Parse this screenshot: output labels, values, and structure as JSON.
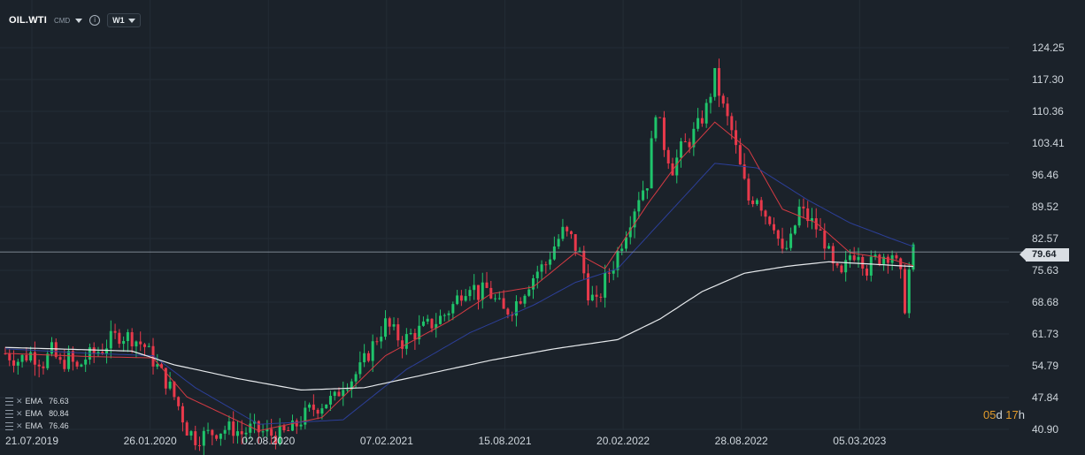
{
  "toolbar": {
    "symbol": "OIL.WTI",
    "market": "CMD",
    "timeframe": "W1"
  },
  "indicators": [
    {
      "label": "EMA",
      "value": "76.63",
      "color": "#d43a43"
    },
    {
      "label": "EMA",
      "value": "80.84",
      "color": "#2c3f98"
    },
    {
      "label": "EMA",
      "value": "76.46",
      "color": "#e6e9ec"
    }
  ],
  "countdown": {
    "days": "05",
    "d_unit": "d",
    "hours": "17",
    "h_unit": "h"
  },
  "current_price": "79.64",
  "colors": {
    "up": "#1fc46b",
    "down": "#e8394b",
    "background": "#1b222a",
    "grid": "#232c35"
  },
  "chart_data": {
    "type": "candlestick",
    "y_ticks": [
      "124.25",
      "117.30",
      "110.36",
      "103.41",
      "96.46",
      "89.52",
      "82.57",
      "75.63",
      "68.68",
      "61.73",
      "54.79",
      "47.84",
      "40.90"
    ],
    "ylim": [
      40.9,
      126.5
    ],
    "x_ticks": [
      "21.07.2019",
      "26.01.2020",
      "02.08.2020",
      "07.02.2021",
      "15.08.2021",
      "20.02.2022",
      "28.08.2022",
      "05.03.2023"
    ],
    "series": [
      {
        "kind": "close",
        "interval": "weekly",
        "points": [
          [
            0,
            57.5
          ],
          [
            3,
            56.0
          ],
          [
            6,
            57.5
          ],
          [
            9,
            55.5
          ],
          [
            11,
            58.0
          ],
          [
            13,
            55.0
          ],
          [
            15,
            56.5
          ],
          [
            17,
            54.0
          ],
          [
            19,
            56.5
          ],
          [
            21,
            57.5
          ],
          [
            23,
            58.5
          ],
          [
            25,
            60.5
          ],
          [
            27,
            61.5
          ],
          [
            30,
            61.0
          ],
          [
            33,
            59.0
          ],
          [
            35,
            56.0
          ],
          [
            37,
            53.0
          ],
          [
            39,
            50.0
          ],
          [
            41,
            46.0
          ],
          [
            43,
            41.0
          ],
          [
            45,
            39.0
          ],
          [
            50,
            40.5
          ],
          [
            52,
            41.0
          ],
          [
            54,
            41.0
          ],
          [
            56,
            40.0
          ],
          [
            58,
            41.0
          ],
          [
            60,
            40.5
          ],
          [
            62,
            40.0
          ],
          [
            64,
            39.5
          ],
          [
            66,
            40.0
          ],
          [
            68,
            41.0
          ],
          [
            70,
            43.0
          ],
          [
            72,
            45.0
          ],
          [
            74,
            46.0
          ],
          [
            76,
            47.0
          ],
          [
            78,
            47.5
          ],
          [
            80,
            51.0
          ],
          [
            82,
            52.0
          ],
          [
            84,
            54.0
          ],
          [
            86,
            57.5
          ],
          [
            88,
            61.0
          ],
          [
            90,
            64.0
          ],
          [
            92,
            62.0
          ],
          [
            94,
            60.0
          ],
          [
            96,
            61.5
          ],
          [
            98,
            62.5
          ],
          [
            100,
            63.5
          ],
          [
            102,
            64.5
          ],
          [
            104,
            66.0
          ],
          [
            106,
            68.0
          ],
          [
            108,
            71.0
          ],
          [
            110,
            73.0
          ],
          [
            112,
            70.5
          ],
          [
            114,
            71.5
          ],
          [
            116,
            69.0
          ],
          [
            118,
            66.5
          ],
          [
            120,
            67.5
          ],
          [
            122,
            70.0
          ],
          [
            124,
            73.0
          ],
          [
            126,
            75.5
          ],
          [
            128,
            77.0
          ],
          [
            130,
            81.0
          ],
          [
            132,
            84.0
          ],
          [
            134,
            82.5
          ],
          [
            136,
            79.0
          ],
          [
            138,
            71.0
          ],
          [
            140,
            68.0
          ],
          [
            142,
            73.5
          ],
          [
            144,
            77.0
          ],
          [
            146,
            82.0
          ],
          [
            148,
            87.0
          ],
          [
            150,
            92.0
          ],
          [
            152,
            95.0
          ],
          [
            154,
            111.0
          ],
          [
            156,
            103.0
          ],
          [
            158,
            98.0
          ],
          [
            160,
            102.0
          ],
          [
            162,
            104.0
          ],
          [
            164,
            107.0
          ],
          [
            166,
            111.0
          ],
          [
            168,
            118.0
          ],
          [
            170,
            111.0
          ],
          [
            172,
            106.0
          ],
          [
            174,
            98.0
          ],
          [
            176,
            91.0
          ],
          [
            178,
            92.0
          ],
          [
            180,
            88.0
          ],
          [
            182,
            86.0
          ],
          [
            184,
            79.0
          ],
          [
            186,
            82.0
          ],
          [
            188,
            89.0
          ],
          [
            190,
            87.0
          ],
          [
            192,
            85.0
          ],
          [
            194,
            82.0
          ],
          [
            196,
            76.0
          ],
          [
            198,
            74.0
          ],
          [
            200,
            79.0
          ],
          [
            202,
            80.0
          ],
          [
            204,
            76.0
          ],
          [
            206,
            78.0
          ],
          [
            208,
            79.0
          ],
          [
            210,
            79.5
          ],
          [
            212,
            74.0
          ],
          [
            213,
            68.0
          ],
          [
            214,
            75.5
          ],
          [
            215,
            79.6
          ]
        ]
      },
      {
        "kind": "ema",
        "label": "EMA",
        "value": 76.63,
        "color": "#d43a43",
        "points": [
          [
            0,
            57.5
          ],
          [
            20,
            56.8
          ],
          [
            35,
            56.5
          ],
          [
            43,
            48.0
          ],
          [
            60,
            40.6
          ],
          [
            75,
            43.5
          ],
          [
            90,
            57.0
          ],
          [
            105,
            64.5
          ],
          [
            115,
            70.5
          ],
          [
            125,
            72.0
          ],
          [
            135,
            79.5
          ],
          [
            142,
            76.0
          ],
          [
            152,
            90.0
          ],
          [
            160,
            100.0
          ],
          [
            168,
            108.0
          ],
          [
            176,
            102.0
          ],
          [
            184,
            89.0
          ],
          [
            192,
            86.0
          ],
          [
            200,
            79.5
          ],
          [
            210,
            78.0
          ],
          [
            215,
            76.63
          ]
        ]
      },
      {
        "kind": "ema",
        "label": "EMA",
        "value": 80.84,
        "color": "#2c3f98",
        "points": [
          [
            0,
            58.5
          ],
          [
            20,
            57.5
          ],
          [
            35,
            57.0
          ],
          [
            45,
            50.0
          ],
          [
            60,
            42.0
          ],
          [
            80,
            43.0
          ],
          [
            95,
            54.0
          ],
          [
            110,
            62.0
          ],
          [
            125,
            68.0
          ],
          [
            135,
            73.0
          ],
          [
            145,
            76.0
          ],
          [
            155,
            86.0
          ],
          [
            168,
            99.0
          ],
          [
            178,
            98.0
          ],
          [
            190,
            91.0
          ],
          [
            200,
            86.0
          ],
          [
            210,
            82.5
          ],
          [
            215,
            80.84
          ]
        ]
      },
      {
        "kind": "ema",
        "label": "EMA",
        "value": 76.46,
        "color": "#e6e9ec",
        "points": [
          [
            0,
            58.8
          ],
          [
            30,
            58.0
          ],
          [
            40,
            55.0
          ],
          [
            55,
            52.0
          ],
          [
            70,
            49.5
          ],
          [
            85,
            50.0
          ],
          [
            100,
            53.0
          ],
          [
            115,
            56.0
          ],
          [
            130,
            58.5
          ],
          [
            145,
            60.5
          ],
          [
            155,
            65.0
          ],
          [
            165,
            71.0
          ],
          [
            175,
            75.0
          ],
          [
            185,
            76.5
          ],
          [
            195,
            77.5
          ],
          [
            205,
            77.0
          ],
          [
            215,
            76.46
          ]
        ]
      }
    ],
    "price_line": 79.64
  }
}
